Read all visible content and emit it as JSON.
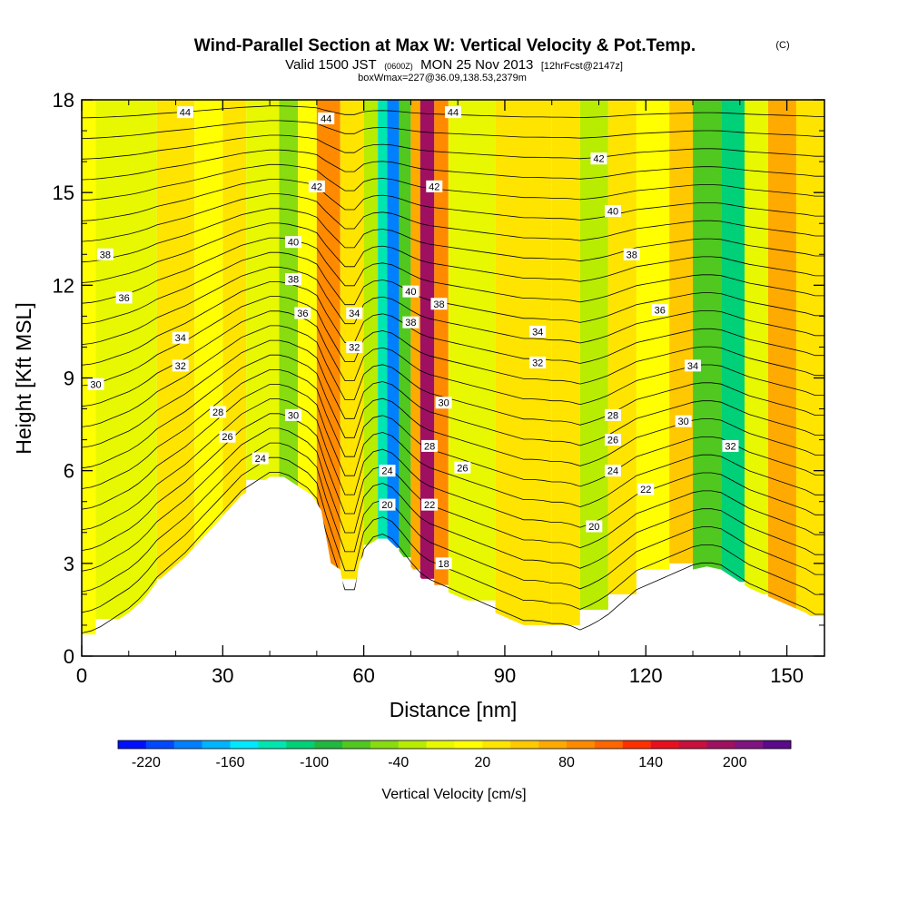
{
  "header": {
    "title": "Wind-Parallel Section at Max W: Vertical Velocity & Pot.Temp.",
    "copyright": "(C)",
    "valid_prefix": "Valid 1500 JST",
    "valid_utc": "(0600Z)",
    "valid_date": "MON 25 Nov 2013",
    "forecast": "[12hrFcst@2147z]",
    "box_info": "boxWmax=227@36.09,138.53,2379m"
  },
  "chart_data": {
    "type": "heatmap",
    "title": "Wind-Parallel Section at Max W: Vertical Velocity & Pot.Temp.",
    "xlabel": "Distance [nm]",
    "ylabel": "Height [Kft MSL]",
    "xlim": [
      0,
      158
    ],
    "ylim": [
      0,
      18
    ],
    "xticks": [
      0,
      30,
      60,
      90,
      120,
      150
    ],
    "xticks_minor": [
      10,
      20,
      40,
      50,
      70,
      80,
      100,
      110,
      130,
      140
    ],
    "yticks": [
      0,
      3,
      6,
      9,
      12,
      15,
      18
    ],
    "xtick_labels": [
      "0",
      "30",
      "60",
      "90",
      "120",
      "150"
    ],
    "ytick_labels": [
      "0",
      "3",
      "6",
      "9",
      "12",
      "15",
      "18"
    ],
    "colorbar": {
      "title": "Vertical Velocity [cm/s]",
      "ticks": [
        "-220",
        "-160",
        "-100",
        "-40",
        "20",
        "80",
        "140",
        "200"
      ],
      "tick_values": [
        -220,
        -160,
        -100,
        -40,
        20,
        80,
        140,
        200
      ],
      "range": [
        -240,
        240
      ],
      "colors": [
        "#0010ff",
        "#0048ff",
        "#0080ff",
        "#00b4ff",
        "#00e8ff",
        "#00e6b0",
        "#00d078",
        "#20b840",
        "#50c820",
        "#88dc10",
        "#b8ec00",
        "#e8f800",
        "#ffff00",
        "#ffe400",
        "#ffc800",
        "#ffaa00",
        "#ff8a00",
        "#ff6600",
        "#ff3000",
        "#e81020",
        "#c8103c",
        "#a01060",
        "#801480",
        "#5a0a8a"
      ]
    },
    "series": [
      {
        "name": "Vertical Velocity",
        "cells": [
          {
            "x": [
              0,
              3
            ],
            "y": [
              0.7,
              18
            ],
            "value": 0
          },
          {
            "x": [
              3,
              16
            ],
            "y": [
              1.2,
              18
            ],
            "value": -20
          },
          {
            "x": [
              16,
              24
            ],
            "y": [
              2.5,
              18
            ],
            "value": 20
          },
          {
            "x": [
              24,
              30
            ],
            "y": [
              3,
              18
            ],
            "value": 0
          },
          {
            "x": [
              30,
              35
            ],
            "y": [
              4.5,
              18
            ],
            "value": 20
          },
          {
            "x": [
              35,
              42
            ],
            "y": [
              5.7,
              18
            ],
            "value": -20
          },
          {
            "x": [
              42,
              46
            ],
            "y": [
              5.2,
              18
            ],
            "value": -55
          },
          {
            "x": [
              46,
              50
            ],
            "y": [
              4.5,
              18
            ],
            "value": 10
          },
          {
            "x": [
              50,
              55
            ],
            "y": [
              2.5,
              18
            ],
            "value": 80
          },
          {
            "x": [
              55,
              60
            ],
            "y": [
              2.5,
              18
            ],
            "value": 20
          },
          {
            "x": [
              60,
              63
            ],
            "y": [
              3.6,
              18
            ],
            "value": -40
          },
          {
            "x": [
              63,
              65
            ],
            "y": [
              3.6,
              18
            ],
            "value": -130
          },
          {
            "x": [
              65,
              67.5
            ],
            "y": [
              3.5,
              18
            ],
            "value": -200
          },
          {
            "x": [
              67.5,
              70
            ],
            "y": [
              3.2,
              18
            ],
            "value": -80
          },
          {
            "x": [
              70,
              72
            ],
            "y": [
              2.8,
              18
            ],
            "value": 60
          },
          {
            "x": [
              72,
              75
            ],
            "y": [
              2.5,
              18
            ],
            "value": 180
          },
          {
            "x": [
              75,
              78
            ],
            "y": [
              2.3,
              18
            ],
            "value": 80
          },
          {
            "x": [
              78,
              88
            ],
            "y": [
              1.8,
              18
            ],
            "value": -15
          },
          {
            "x": [
              88,
              100
            ],
            "y": [
              1.0,
              18
            ],
            "value": 20
          },
          {
            "x": [
              100,
              106
            ],
            "y": [
              1.0,
              18
            ],
            "value": 30
          },
          {
            "x": [
              106,
              112
            ],
            "y": [
              1.5,
              18
            ],
            "value": -30
          },
          {
            "x": [
              112,
              118
            ],
            "y": [
              2.0,
              18
            ],
            "value": 20
          },
          {
            "x": [
              118,
              125
            ],
            "y": [
              2.8,
              18
            ],
            "value": 10
          },
          {
            "x": [
              125,
              130
            ],
            "y": [
              3.0,
              18
            ],
            "value": 40
          },
          {
            "x": [
              130,
              136
            ],
            "y": [
              2.8,
              18
            ],
            "value": -70
          },
          {
            "x": [
              136,
              141
            ],
            "y": [
              2.4,
              18
            ],
            "value": -120
          },
          {
            "x": [
              141,
              146
            ],
            "y": [
              2.0,
              18
            ],
            "value": -20
          },
          {
            "x": [
              146,
              152
            ],
            "y": [
              1.5,
              18
            ],
            "value": 60
          },
          {
            "x": [
              152,
              158
            ],
            "y": [
              1.3,
              18
            ],
            "value": 20
          }
        ]
      },
      {
        "name": "Potential Temperature",
        "contour_labels": [
          {
            "x": 22,
            "y": 17.6,
            "label": "44"
          },
          {
            "x": 52,
            "y": 17.4,
            "label": "44"
          },
          {
            "x": 79,
            "y": 17.6,
            "label": "44"
          },
          {
            "x": 50,
            "y": 15.2,
            "label": "42"
          },
          {
            "x": 75,
            "y": 15.2,
            "label": "42"
          },
          {
            "x": 110,
            "y": 16.1,
            "label": "42"
          },
          {
            "x": 45,
            "y": 13.4,
            "label": "40"
          },
          {
            "x": 70,
            "y": 11.8,
            "label": "40"
          },
          {
            "x": 113,
            "y": 14.4,
            "label": "40"
          },
          {
            "x": 5,
            "y": 13,
            "label": "38"
          },
          {
            "x": 45,
            "y": 12.2,
            "label": "38"
          },
          {
            "x": 70,
            "y": 10.8,
            "label": "38"
          },
          {
            "x": 76,
            "y": 11.4,
            "label": "38"
          },
          {
            "x": 117,
            "y": 13,
            "label": "38"
          },
          {
            "x": 9,
            "y": 11.6,
            "label": "36"
          },
          {
            "x": 47,
            "y": 11.1,
            "label": "36"
          },
          {
            "x": 123,
            "y": 11.2,
            "label": "36"
          },
          {
            "x": 21,
            "y": 10.3,
            "label": "34"
          },
          {
            "x": 58,
            "y": 11.1,
            "label": "34"
          },
          {
            "x": 97,
            "y": 10.5,
            "label": "34"
          },
          {
            "x": 130,
            "y": 9.4,
            "label": "34"
          },
          {
            "x": 21,
            "y": 9.4,
            "label": "32"
          },
          {
            "x": 58,
            "y": 10.0,
            "label": "32"
          },
          {
            "x": 97,
            "y": 9.5,
            "label": "32"
          },
          {
            "x": 138,
            "y": 6.8,
            "label": "32"
          },
          {
            "x": 3,
            "y": 8.8,
            "label": "30"
          },
          {
            "x": 45,
            "y": 7.8,
            "label": "30"
          },
          {
            "x": 77,
            "y": 8.2,
            "label": "30"
          },
          {
            "x": 128,
            "y": 7.6,
            "label": "30"
          },
          {
            "x": 29,
            "y": 7.9,
            "label": "28"
          },
          {
            "x": 74,
            "y": 6.8,
            "label": "28"
          },
          {
            "x": 113,
            "y": 7.8,
            "label": "28"
          },
          {
            "x": 31,
            "y": 7.1,
            "label": "26"
          },
          {
            "x": 81,
            "y": 6.1,
            "label": "26"
          },
          {
            "x": 113,
            "y": 7.0,
            "label": "26"
          },
          {
            "x": 38,
            "y": 6.4,
            "label": "24"
          },
          {
            "x": 65,
            "y": 6.0,
            "label": "24"
          },
          {
            "x": 113,
            "y": 6.0,
            "label": "24"
          },
          {
            "x": 74,
            "y": 4.9,
            "label": "22"
          },
          {
            "x": 120,
            "y": 5.4,
            "label": "22"
          },
          {
            "x": 65,
            "y": 4.9,
            "label": "20"
          },
          {
            "x": 109,
            "y": 4.2,
            "label": "20"
          },
          {
            "x": 77,
            "y": 3.0,
            "label": "18"
          }
        ]
      }
    ],
    "terrain": [
      [
        0,
        0.6
      ],
      [
        3,
        0.7
      ],
      [
        6,
        1
      ],
      [
        10,
        1.4
      ],
      [
        13,
        1.8
      ],
      [
        16,
        2.4
      ],
      [
        19,
        2.8
      ],
      [
        22,
        3.2
      ],
      [
        25,
        3.7
      ],
      [
        28,
        4.2
      ],
      [
        31,
        4.7
      ],
      [
        34,
        5.2
      ],
      [
        37,
        5.5
      ],
      [
        40,
        5.8
      ],
      [
        43,
        5.8
      ],
      [
        46,
        5.5
      ],
      [
        49,
        5.2
      ],
      [
        51,
        4.7
      ],
      [
        53,
        3.0
      ],
      [
        55,
        2.8
      ],
      [
        56,
        2.0
      ],
      [
        58,
        2.0
      ],
      [
        59,
        3.0
      ],
      [
        61,
        3.6
      ],
      [
        63,
        3.8
      ],
      [
        65,
        3.8
      ],
      [
        67,
        3.5
      ],
      [
        69,
        3.1
      ],
      [
        71,
        2.7
      ],
      [
        73,
        2.4
      ],
      [
        76,
        2.2
      ],
      [
        79,
        2.0
      ],
      [
        82,
        1.8
      ],
      [
        85,
        1.6
      ],
      [
        88,
        1.4
      ],
      [
        91,
        1.2
      ],
      [
        94,
        1.0
      ],
      [
        97,
        1.0
      ],
      [
        100,
        0.9
      ],
      [
        103,
        0.9
      ],
      [
        106,
        0.7
      ],
      [
        109,
        0.9
      ],
      [
        112,
        1.2
      ],
      [
        115,
        1.6
      ],
      [
        118,
        2.0
      ],
      [
        121,
        2.2
      ],
      [
        124,
        2.4
      ],
      [
        127,
        2.6
      ],
      [
        130,
        2.8
      ],
      [
        133,
        2.9
      ],
      [
        136,
        2.8
      ],
      [
        139,
        2.5
      ],
      [
        142,
        2.2
      ],
      [
        145,
        2.0
      ],
      [
        148,
        1.8
      ],
      [
        151,
        1.6
      ],
      [
        154,
        1.4
      ],
      [
        156,
        1.2
      ],
      [
        158,
        1.2
      ]
    ]
  }
}
